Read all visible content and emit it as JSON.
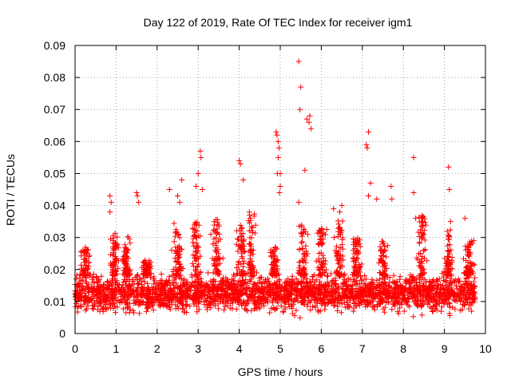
{
  "chart_data": {
    "type": "scatter",
    "title": "Day 122 of 2019, Rate Of TEC Index for receiver igm1",
    "xlabel": "GPS time / hours",
    "ylabel": "ROTI / TECUs",
    "xlim": [
      0,
      10
    ],
    "ylim": [
      0,
      0.09
    ],
    "x_ticks": [
      "0",
      "1",
      "2",
      "3",
      "4",
      "5",
      "6",
      "7",
      "8",
      "9",
      "10"
    ],
    "y_ticks": [
      "0",
      "0.01",
      "0.02",
      "0.03",
      "0.04",
      "0.05",
      "0.06",
      "0.07",
      "0.08",
      "0.09"
    ],
    "grid": true,
    "marker": "+",
    "color": "#ff0000",
    "x_range_of_data": [
      0,
      9.75
    ],
    "baseline_band": [
      0.005,
      0.022
    ],
    "notable_points": [
      {
        "x": 0.85,
        "y": 0.043
      },
      {
        "x": 0.88,
        "y": 0.041
      },
      {
        "x": 0.85,
        "y": 0.038
      },
      {
        "x": 1.5,
        "y": 0.044
      },
      {
        "x": 1.52,
        "y": 0.043
      },
      {
        "x": 1.55,
        "y": 0.041
      },
      {
        "x": 2.3,
        "y": 0.045
      },
      {
        "x": 2.5,
        "y": 0.043
      },
      {
        "x": 2.55,
        "y": 0.041
      },
      {
        "x": 2.6,
        "y": 0.048
      },
      {
        "x": 2.95,
        "y": 0.046
      },
      {
        "x": 3.0,
        "y": 0.05
      },
      {
        "x": 3.05,
        "y": 0.057
      },
      {
        "x": 3.07,
        "y": 0.055
      },
      {
        "x": 3.1,
        "y": 0.045
      },
      {
        "x": 4.0,
        "y": 0.054
      },
      {
        "x": 4.03,
        "y": 0.053
      },
      {
        "x": 4.1,
        "y": 0.048
      },
      {
        "x": 4.9,
        "y": 0.063
      },
      {
        "x": 4.92,
        "y": 0.062
      },
      {
        "x": 4.95,
        "y": 0.06
      },
      {
        "x": 4.97,
        "y": 0.058
      },
      {
        "x": 4.95,
        "y": 0.055
      },
      {
        "x": 4.93,
        "y": 0.05
      },
      {
        "x": 5.0,
        "y": 0.05
      },
      {
        "x": 5.0,
        "y": 0.046
      },
      {
        "x": 4.98,
        "y": 0.044
      },
      {
        "x": 5.45,
        "y": 0.085
      },
      {
        "x": 5.5,
        "y": 0.077
      },
      {
        "x": 5.48,
        "y": 0.07
      },
      {
        "x": 5.6,
        "y": 0.051
      },
      {
        "x": 5.65,
        "y": 0.067
      },
      {
        "x": 5.7,
        "y": 0.066
      },
      {
        "x": 5.72,
        "y": 0.068
      },
      {
        "x": 5.75,
        "y": 0.064
      },
      {
        "x": 5.45,
        "y": 0.041
      },
      {
        "x": 6.3,
        "y": 0.039
      },
      {
        "x": 6.5,
        "y": 0.04
      },
      {
        "x": 6.45,
        "y": 0.038
      },
      {
        "x": 7.1,
        "y": 0.059
      },
      {
        "x": 7.15,
        "y": 0.063
      },
      {
        "x": 7.12,
        "y": 0.058
      },
      {
        "x": 7.2,
        "y": 0.047
      },
      {
        "x": 7.15,
        "y": 0.043
      },
      {
        "x": 7.35,
        "y": 0.042
      },
      {
        "x": 7.7,
        "y": 0.046
      },
      {
        "x": 7.72,
        "y": 0.042
      },
      {
        "x": 8.25,
        "y": 0.055
      },
      {
        "x": 8.25,
        "y": 0.044
      },
      {
        "x": 8.3,
        "y": 0.036
      },
      {
        "x": 9.1,
        "y": 0.052
      },
      {
        "x": 9.12,
        "y": 0.045
      },
      {
        "x": 9.15,
        "y": 0.035
      },
      {
        "x": 9.5,
        "y": 0.036
      }
    ],
    "activity_clusters": [
      {
        "center": 0.25,
        "peak": 0.027
      },
      {
        "center": 0.95,
        "peak": 0.032
      },
      {
        "center": 1.25,
        "peak": 0.031
      },
      {
        "center": 1.75,
        "peak": 0.023
      },
      {
        "center": 2.5,
        "peak": 0.035
      },
      {
        "center": 2.95,
        "peak": 0.035
      },
      {
        "center": 3.45,
        "peak": 0.036
      },
      {
        "center": 4.05,
        "peak": 0.034
      },
      {
        "center": 4.3,
        "peak": 0.038
      },
      {
        "center": 4.85,
        "peak": 0.027
      },
      {
        "center": 5.55,
        "peak": 0.035
      },
      {
        "center": 6.0,
        "peak": 0.033
      },
      {
        "center": 6.45,
        "peak": 0.037
      },
      {
        "center": 6.85,
        "peak": 0.03
      },
      {
        "center": 7.5,
        "peak": 0.029
      },
      {
        "center": 8.45,
        "peak": 0.037
      },
      {
        "center": 9.1,
        "peak": 0.033
      },
      {
        "center": 9.6,
        "peak": 0.03
      }
    ]
  }
}
